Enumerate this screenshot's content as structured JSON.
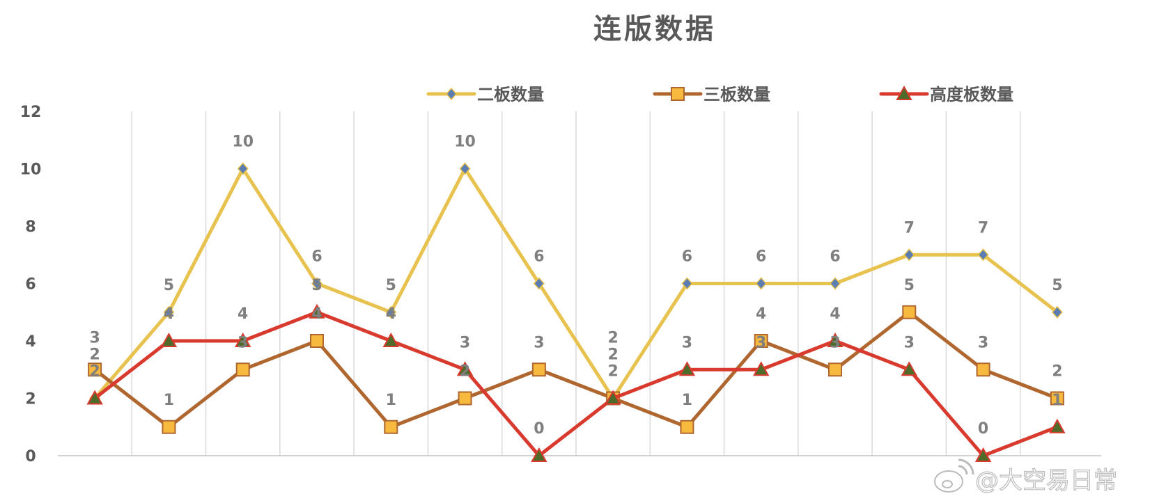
{
  "chart_data": {
    "type": "line",
    "title": "连版数据",
    "xlabel": "",
    "ylabel": "",
    "ylim": [
      0,
      12
    ],
    "yticks": [
      0,
      2,
      4,
      6,
      8,
      10,
      12
    ],
    "grid": "vertical",
    "legend_position": "top-right",
    "series": [
      {
        "name": "二板数量",
        "color": "#E8C24E",
        "marker": "diamond",
        "marker_color": "#5B7DB1",
        "values": [
          2,
          5,
          10,
          6,
          5,
          10,
          6,
          2,
          6,
          6,
          6,
          7,
          7,
          5
        ]
      },
      {
        "name": "三板数量",
        "color": "#B0672F",
        "marker": "square",
        "marker_color": "#F7B93E",
        "values": [
          3,
          1,
          3,
          4,
          1,
          2,
          3,
          2,
          1,
          4,
          3,
          5,
          3,
          2
        ]
      },
      {
        "name": "高度板数量",
        "color": "#D93A2E",
        "marker": "triangle",
        "marker_color": "#4E6B2A",
        "values": [
          2,
          4,
          4,
          5,
          4,
          3,
          0,
          2,
          3,
          3,
          4,
          3,
          0,
          1
        ]
      }
    ]
  },
  "watermark": "@大空易日常"
}
